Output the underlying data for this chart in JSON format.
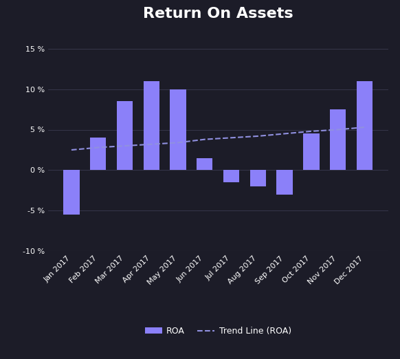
{
  "title": "Return On Assets",
  "background_color": "#1c1c28",
  "plot_bg_color": "#1c1c28",
  "bar_color": "#8b80f9",
  "trend_color": "#9090e0",
  "text_color": "#ffffff",
  "grid_color": "#3a3a50",
  "categories": [
    "Jan 2017",
    "Feb 2017",
    "Mar 2017",
    "Apr 2017",
    "May 2017",
    "Jun 2017",
    "Jul 2017",
    "Aug 2017",
    "Sep 2017",
    "Oct 2017",
    "Nov 2017",
    "Dec 2017"
  ],
  "values": [
    -5.5,
    4.0,
    8.5,
    11.0,
    10.0,
    1.5,
    -1.5,
    -2.0,
    -3.0,
    4.5,
    7.5,
    11.0
  ],
  "trend_values": [
    2.5,
    2.8,
    3.0,
    3.2,
    3.4,
    3.8,
    4.0,
    4.2,
    4.5,
    4.8,
    5.0,
    5.3
  ],
  "ylim": [
    -10,
    17
  ],
  "yticks": [
    -10,
    -5,
    0,
    5,
    10,
    15
  ],
  "legend_roa": "ROA",
  "legend_trend": "Trend Line (ROA)",
  "title_fontsize": 16,
  "axis_fontsize": 8,
  "legend_fontsize": 9
}
